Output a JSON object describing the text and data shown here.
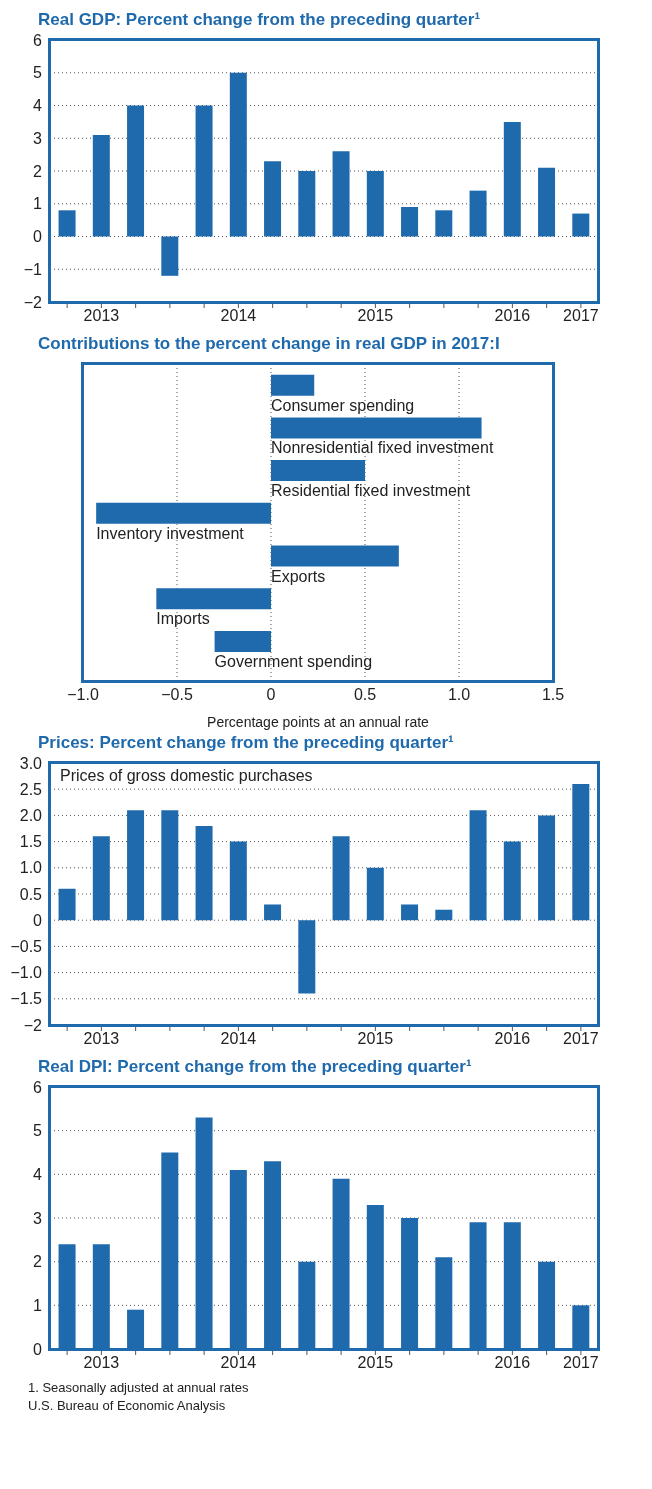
{
  "chart_data": [
    {
      "type": "bar",
      "title": "Real GDP: Percent change from the preceding quarter¹",
      "categories": [
        null,
        "2013",
        null,
        null,
        null,
        "2014",
        null,
        null,
        null,
        "2015",
        null,
        null,
        null,
        "2016",
        null,
        "2017"
      ],
      "values": [
        0.8,
        3.1,
        4.0,
        -1.2,
        4.0,
        5.0,
        2.3,
        2.0,
        2.6,
        2.0,
        0.9,
        0.8,
        1.4,
        3.5,
        2.1,
        0.7
      ],
      "color": "#1f6aad",
      "ylim": [
        -2,
        6
      ],
      "yticks": [
        {
          "value": -2,
          "label": "−2"
        },
        {
          "value": -1,
          "label": "−1"
        },
        0,
        1,
        2,
        3,
        4,
        5,
        6
      ],
      "grid": "y"
    },
    {
      "type": "bar",
      "orientation": "horizontal",
      "title": "Contributions to the percent change in real GDP in 2017:I",
      "xlabel": "Percentage points at an annual rate",
      "categories": [
        "Consumer spending",
        "Nonresidential fixed investment",
        "Residential fixed investment",
        "Inventory investment",
        "Exports",
        "Imports",
        "Government spending"
      ],
      "values": [
        0.23,
        1.12,
        0.5,
        -0.93,
        0.68,
        -0.61,
        -0.3
      ],
      "color": "#1f6aad",
      "xlim": [
        -1,
        1.5
      ],
      "xticks": [
        {
          "value": -1,
          "label": "−1.0"
        },
        {
          "value": -0.5,
          "label": "−0.5"
        },
        0,
        {
          "value": 0.5,
          "label": "0.5"
        },
        {
          "value": 1,
          "label": "1.0"
        },
        {
          "value": 1.5,
          "label": "1.5"
        }
      ],
      "grid": "x",
      "tick_labels": "x"
    },
    {
      "type": "bar",
      "title": "Prices: Percent change from the preceding quarter¹",
      "annotations": [
        "Prices of gross domestic purchases"
      ],
      "categories": [
        null,
        "2013",
        null,
        null,
        null,
        "2014",
        null,
        null,
        null,
        "2015",
        null,
        null,
        null,
        "2016",
        null,
        "2017"
      ],
      "values": [
        0.6,
        1.6,
        2.1,
        2.1,
        1.8,
        1.5,
        0.3,
        -1.4,
        1.6,
        1.0,
        0.3,
        0.2,
        2.1,
        1.5,
        2.0,
        2.6
      ],
      "color": "#1f6aad",
      "ylim": [
        -2,
        3
      ],
      "yticks": [
        {
          "value": -2,
          "label": "−2"
        },
        {
          "value": -1.5,
          "label": "−1.5"
        },
        {
          "value": -1,
          "label": "−1.0"
        },
        {
          "value": -0.5,
          "label": "−0.5"
        },
        0,
        {
          "value": 0.5,
          "label": "0.5"
        },
        {
          "value": 1,
          "label": "1.0"
        },
        {
          "value": 1.5,
          "label": "1.5"
        },
        {
          "value": 2,
          "label": "2.0"
        },
        {
          "value": 2.5,
          "label": "2.5"
        },
        {
          "value": 3,
          "label": "3.0"
        }
      ],
      "grid": "y"
    },
    {
      "type": "bar",
      "title": "Real DPI: Percent change from the preceding quarter¹",
      "annotations": [
        "1. Seasonally adjusted at annual rates",
        "U.S. Bureau of Economic Analysis"
      ],
      "categories": [
        null,
        "2013",
        null,
        null,
        null,
        "2014",
        null,
        null,
        null,
        "2015",
        null,
        null,
        null,
        "2016",
        null,
        "2017"
      ],
      "values": [
        2.4,
        2.4,
        0.9,
        4.5,
        5.3,
        4.1,
        4.3,
        2.0,
        3.9,
        3.3,
        3.0,
        2.1,
        2.9,
        2.9,
        2.0,
        1.0
      ],
      "color": "#1f6aad",
      "ylim": [
        0,
        6
      ],
      "yticks": [
        0,
        1,
        2,
        3,
        4,
        5,
        6
      ],
      "grid": "y"
    }
  ]
}
